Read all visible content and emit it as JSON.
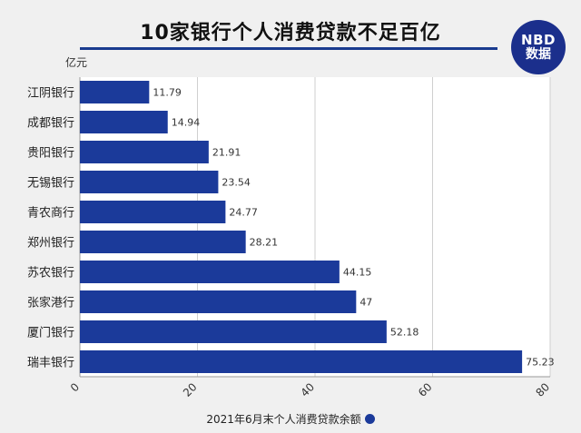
{
  "header": {
    "title": "10家银行个人消费贷款不足百亿",
    "badge_line1": "NBD",
    "badge_line2": "数据"
  },
  "chart_data": {
    "type": "bar",
    "orientation": "horizontal",
    "title": "10家银行个人消费贷款不足百亿",
    "unit_label": "亿元",
    "categories": [
      "江阴银行",
      "成都银行",
      "贵阳银行",
      "无锡银行",
      "青农商行",
      "郑州银行",
      "苏农银行",
      "张家港行",
      "厦门银行",
      "瑞丰银行"
    ],
    "series": [
      {
        "name": "2021年6月末个人消费贷款余额",
        "values": [
          11.79,
          14.94,
          21.91,
          23.54,
          24.77,
          28.21,
          44.15,
          47,
          52.18,
          75.23
        ],
        "labels": [
          "11.79",
          "14.94",
          "21.91",
          "23.54",
          "24.77",
          "28.21",
          "44.15",
          "47",
          "52.18",
          "75.23"
        ],
        "color": "#1b3a9a"
      }
    ],
    "xlim": [
      0,
      80
    ],
    "xticks": [
      0,
      20,
      40,
      60,
      80
    ],
    "grid": true,
    "legend_position": "bottom"
  },
  "colors": {
    "bar": "#1b3a9a",
    "accent": "#1a3b8f"
  }
}
